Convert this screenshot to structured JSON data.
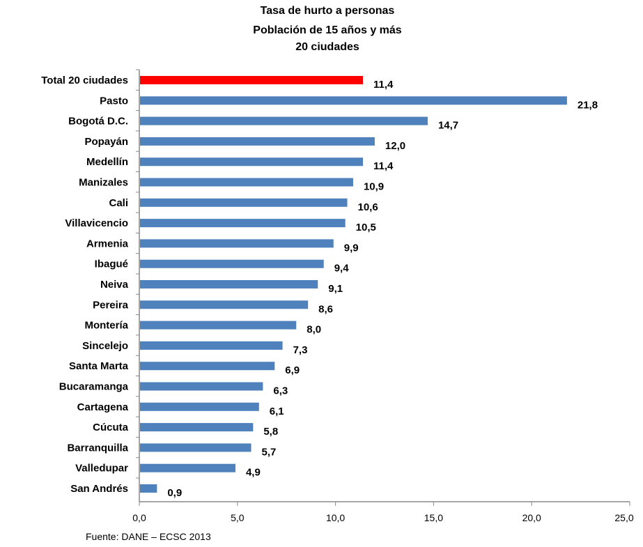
{
  "chart_data": {
    "type": "bar",
    "orientation": "horizontal",
    "title_lines": [
      "Tasa de hurto a personas",
      "Población de 15 años y más",
      "20 ciudades"
    ],
    "categories": [
      "Total 20 ciudades",
      "Pasto",
      "Bogotá D.C.",
      "Popayán",
      "Medellín",
      "Manizales",
      "Cali",
      "Villavicencio",
      "Armenia",
      "Ibagué",
      "Neiva",
      "Pereira",
      "Montería",
      "Sincelejo",
      "Santa Marta",
      "Bucaramanga",
      "Cartagena",
      "Cúcuta",
      "Barranquilla",
      "Valledupar",
      "San Andrés"
    ],
    "values": [
      11.4,
      21.8,
      14.7,
      12.0,
      11.4,
      10.9,
      10.6,
      10.5,
      9.9,
      9.4,
      9.1,
      8.6,
      8.0,
      7.3,
      6.9,
      6.3,
      6.1,
      5.8,
      5.7,
      4.9,
      0.9
    ],
    "value_labels": [
      "11,4",
      "21,8",
      "14,7",
      "12,0",
      "11,4",
      "10,9",
      "10,6",
      "10,5",
      "9,9",
      "9,4",
      "9,1",
      "8,6",
      "8,0",
      "7,3",
      "6,9",
      "6,3",
      "6,1",
      "5,8",
      "5,7",
      "4,9",
      "0,9"
    ],
    "xlim": [
      0,
      25
    ],
    "xticks": [
      0,
      5,
      10,
      15,
      20,
      25
    ],
    "xtick_labels": [
      "0,0",
      "5,0",
      "10,0",
      "15,0",
      "20,0",
      "25,0"
    ],
    "grid": false,
    "colors": {
      "highlight": "#ff0000",
      "default": "#4f81bd",
      "axis": "#888888"
    },
    "highlight_index": 0
  },
  "footer": {
    "source": "Fuente: DANE – ECSC 2013"
  }
}
